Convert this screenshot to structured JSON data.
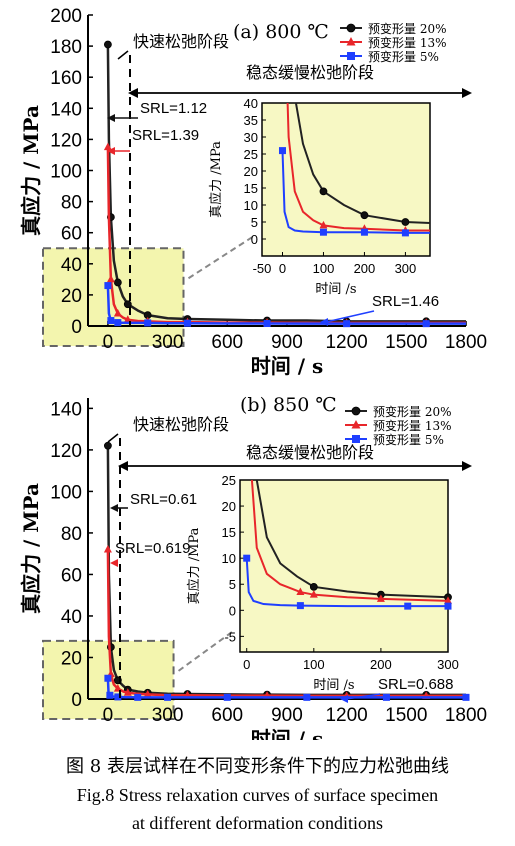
{
  "chart_data": [
    {
      "type": "line",
      "panel_label": "(a)",
      "temperature": "800 ℃",
      "xlabel": "时间 / s",
      "ylabel": "真应力 / MPa",
      "xlim": [
        -100,
        1800
      ],
      "ylim": [
        0,
        200
      ],
      "x_ticks": [
        0,
        300,
        600,
        900,
        1200,
        1500,
        1800
      ],
      "y_ticks": [
        0,
        20,
        40,
        60,
        80,
        100,
        120,
        140,
        160,
        180,
        200
      ],
      "legend_position": "top-right",
      "series": [
        {
          "name": "预变形量 20%",
          "color": "#222222",
          "marker": "circle",
          "x": [
            0,
            5,
            15,
            30,
            50,
            75,
            100,
            150,
            200,
            300,
            400,
            600,
            800,
            1000,
            1200,
            1400,
            1600,
            1800
          ],
          "y": [
            181,
            120,
            70,
            42,
            28,
            19,
            14,
            10,
            7,
            5,
            4.5,
            4,
            3.5,
            3.5,
            3,
            3,
            3,
            3
          ]
        },
        {
          "name": "预变形量 13%",
          "color": "#e8262b",
          "marker": "triangle",
          "x": [
            0,
            5,
            15,
            30,
            50,
            75,
            100,
            150,
            200,
            300,
            400,
            600,
            800,
            1000,
            1200,
            1400,
            1600,
            1800
          ],
          "y": [
            115,
            70,
            30,
            14,
            8,
            5.5,
            4,
            3.2,
            3,
            2.5,
            2.5,
            2.2,
            2.2,
            2,
            2,
            2,
            2,
            2
          ]
        },
        {
          "name": "预变形量 5%",
          "color": "#1f3fff",
          "marker": "square",
          "x": [
            0,
            5,
            15,
            30,
            50,
            100,
            200,
            300,
            400,
            600,
            800,
            1000,
            1200,
            1400,
            1600,
            1800
          ],
          "y": [
            26,
            8,
            3.5,
            2.5,
            2.2,
            2,
            2,
            1.8,
            1.8,
            1.6,
            1.6,
            1.5,
            1.5,
            1.5,
            1.5,
            1.5
          ]
        }
      ],
      "annotations": {
        "fast_stage": "快速松弛阶段",
        "slow_stage": "稳态缓慢松弛阶段",
        "srl_20": "SRL=1.12",
        "srl_13": "SRL=1.39",
        "srl_5": "SRL=1.46"
      },
      "inset": {
        "xlim": [
          -50,
          360
        ],
        "ylim": [
          -5,
          40
        ],
        "x_ticks": [
          -50,
          0,
          100,
          200,
          300
        ],
        "y_ticks": [
          0,
          5,
          10,
          15,
          20,
          25,
          30,
          35,
          40
        ],
        "xlabel": "时间 /s",
        "ylabel": "真应力 /MPa"
      }
    },
    {
      "type": "line",
      "panel_label": "(b)",
      "temperature": "850 ℃",
      "xlabel": "时间 / s",
      "ylabel": "真应力 / MPa",
      "xlim": [
        -100,
        1800
      ],
      "ylim": [
        0,
        145
      ],
      "x_ticks": [
        0,
        300,
        600,
        900,
        1200,
        1500,
        1800
      ],
      "y_ticks": [
        0,
        20,
        40,
        60,
        80,
        100,
        120,
        140
      ],
      "legend_position": "top-right",
      "series": [
        {
          "name": "预变形量 20%",
          "color": "#222222",
          "marker": "circle",
          "x": [
            0,
            5,
            15,
            30,
            50,
            75,
            100,
            150,
            200,
            300,
            400,
            600,
            800,
            1000,
            1200,
            1400,
            1600,
            1800
          ],
          "y": [
            122,
            60,
            25,
            14,
            9,
            6.5,
            4.5,
            3.6,
            3,
            2.5,
            2.4,
            2.2,
            2.1,
            2,
            2,
            2,
            2,
            2
          ]
        },
        {
          "name": "预变形量 13%",
          "color": "#e8262b",
          "marker": "triangle",
          "x": [
            0,
            5,
            15,
            30,
            50,
            80,
            100,
            150,
            200,
            300,
            400,
            600,
            800,
            1000,
            1200,
            1400,
            1600,
            1800
          ],
          "y": [
            72,
            30,
            12,
            7,
            5,
            3.5,
            3,
            2.5,
            2.2,
            1.8,
            1.8,
            1.6,
            1.6,
            1.5,
            1.5,
            1.5,
            1.5,
            1.5
          ]
        },
        {
          "name": "预变形量 5%",
          "color": "#1f3fff",
          "marker": "square",
          "x": [
            0,
            3,
            10,
            25,
            50,
            80,
            150,
            240,
            300,
            400,
            600,
            800,
            1000,
            1200,
            1400,
            1600,
            1800
          ],
          "y": [
            10,
            3.5,
            1.8,
            1.2,
            1,
            0.9,
            0.8,
            0.8,
            0.8,
            0.8,
            0.8,
            0.8,
            0.8,
            0.8,
            0.8,
            0.8,
            0.8
          ]
        }
      ],
      "annotations": {
        "fast_stage": "快速松弛阶段",
        "slow_stage": "稳态缓慢松弛阶段",
        "srl_20": "SRL=0.61",
        "srl_13": "SRL=0.619",
        "srl_5": "SRL=0.688"
      },
      "inset": {
        "xlim": [
          -10,
          300
        ],
        "ylim": [
          -8,
          25
        ],
        "x_ticks": [
          0,
          100,
          200,
          300
        ],
        "y_ticks": [
          -5,
          0,
          5,
          10,
          15,
          20,
          25
        ],
        "xlabel": "时间 /s",
        "ylabel": "真应力 /MPa"
      }
    }
  ],
  "caption": {
    "cn": "图 8  表层试样在不同变形条件下的应力松弛曲线",
    "en_line1": "Fig.8   Stress relaxation curves of surface specimen",
    "en_line2": "at different deformation conditions"
  }
}
